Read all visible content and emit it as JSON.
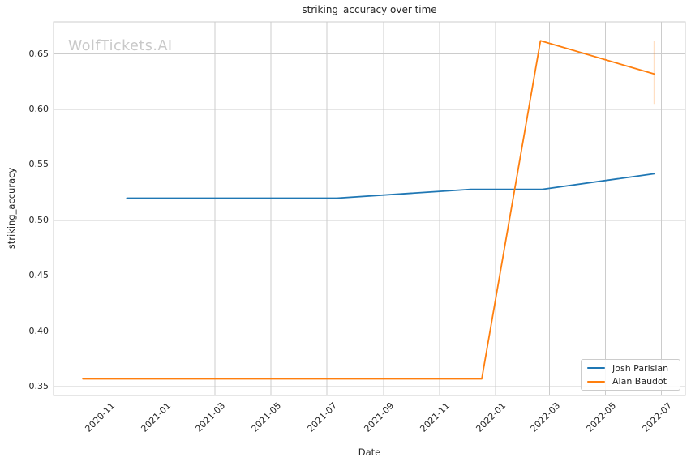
{
  "title": "striking_accuracy over time",
  "watermark": "WolfTickets.AI",
  "chart_data": {
    "type": "line",
    "title": "striking_accuracy over time",
    "xlabel": "Date",
    "ylabel": "striking_accuracy",
    "x_tick_labels": [
      "2020-11",
      "2021-01",
      "2021-03",
      "2021-05",
      "2021-07",
      "2021-09",
      "2021-11",
      "2022-01",
      "2022-03",
      "2022-05",
      "2022-07"
    ],
    "y_tick_labels": [
      "0.35",
      "0.40",
      "0.45",
      "0.50",
      "0.55",
      "0.60",
      "0.65"
    ],
    "xlim": [
      "2020-09-06",
      "2022-07-27"
    ],
    "ylim": [
      0.342,
      0.679
    ],
    "grid": true,
    "legend_position": "lower right",
    "series": [
      {
        "name": "Josh Parisian",
        "color": "#1f77b4",
        "points": [
          {
            "date": "2020-11-25",
            "value": 0.52
          },
          {
            "date": "2021-07-12",
            "value": 0.52
          },
          {
            "date": "2021-12-05",
            "value": 0.528
          },
          {
            "date": "2022-02-21",
            "value": 0.528
          },
          {
            "date": "2022-06-23",
            "value": 0.542
          }
        ]
      },
      {
        "name": "Alan Baudot",
        "color": "#ff7f0e",
        "points": [
          {
            "date": "2020-10-08",
            "value": 0.357
          },
          {
            "date": "2021-12-17",
            "value": 0.357
          },
          {
            "date": "2022-02-19",
            "value": 0.662
          },
          {
            "date": "2022-06-23",
            "value": 0.632
          }
        ],
        "error_bar": {
          "date": "2022-06-23",
          "low": 0.605,
          "high": 0.662
        }
      }
    ]
  },
  "colors": {
    "grid": "#cccccc",
    "axis_border": "#cccccc",
    "text": "#262626",
    "watermark": "#c9c9c9"
  }
}
